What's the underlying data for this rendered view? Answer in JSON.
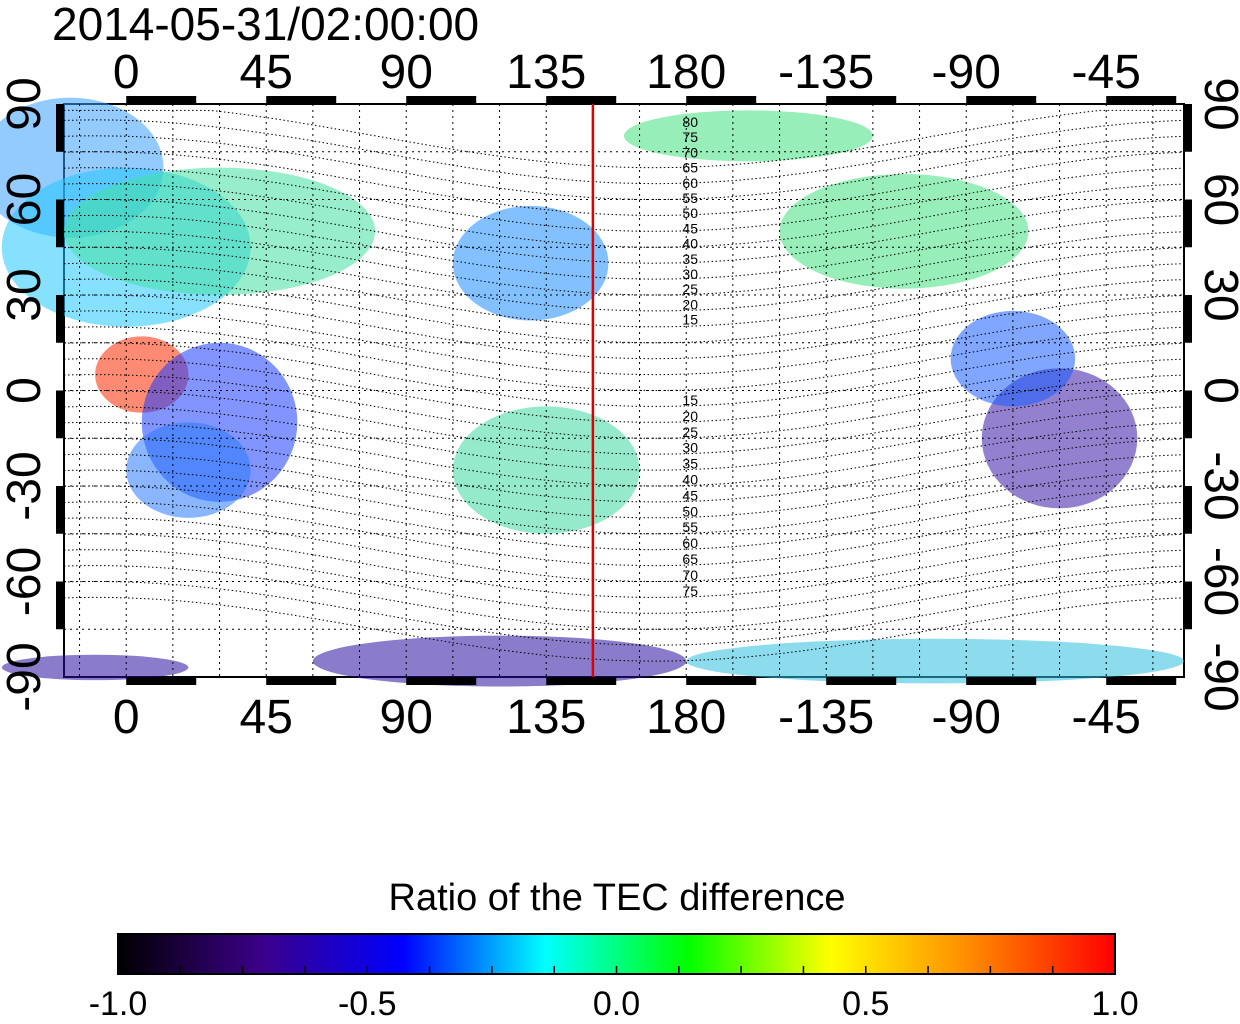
{
  "timestamp": "2014-05-31/02:00:00",
  "colorbar_title": "Ratio of the TEC difference",
  "colorbar": {
    "stops": [
      "#000000",
      "#3b0088",
      "#0000ff",
      "#00ffff",
      "#00ff00",
      "#ffff00",
      "#ff8800",
      "#ff0000"
    ],
    "tick_labels": [
      "-1.0",
      "-0.5",
      "0.0",
      "0.5",
      "1.0"
    ]
  },
  "chart_data": {
    "type": "heatmap",
    "title": "2014-05-31/02:00:00",
    "x_ticks": [
      "0",
      "45",
      "90",
      "135",
      "180",
      "-135",
      "-90",
      "-45"
    ],
    "y_ticks": [
      "90",
      "60",
      "30",
      "0",
      "-30",
      "-60",
      "-90"
    ],
    "longitude_start": -20,
    "longitude_span": 360,
    "latitude_range": [
      -90,
      90
    ],
    "grid": true,
    "marker_longitude": 150,
    "marker_color": "#e00000",
    "contour_labels_north": [
      "80",
      "75",
      "70",
      "65",
      "60",
      "55",
      "50",
      "45",
      "40",
      "35",
      "30",
      "25",
      "20",
      "15"
    ],
    "contour_labels_south": [
      "15",
      "20",
      "25",
      "30",
      "35",
      "40",
      "45",
      "50",
      "55",
      "60",
      "65",
      "70",
      "75"
    ],
    "value_range": [
      -1.0,
      1.0
    ]
  }
}
